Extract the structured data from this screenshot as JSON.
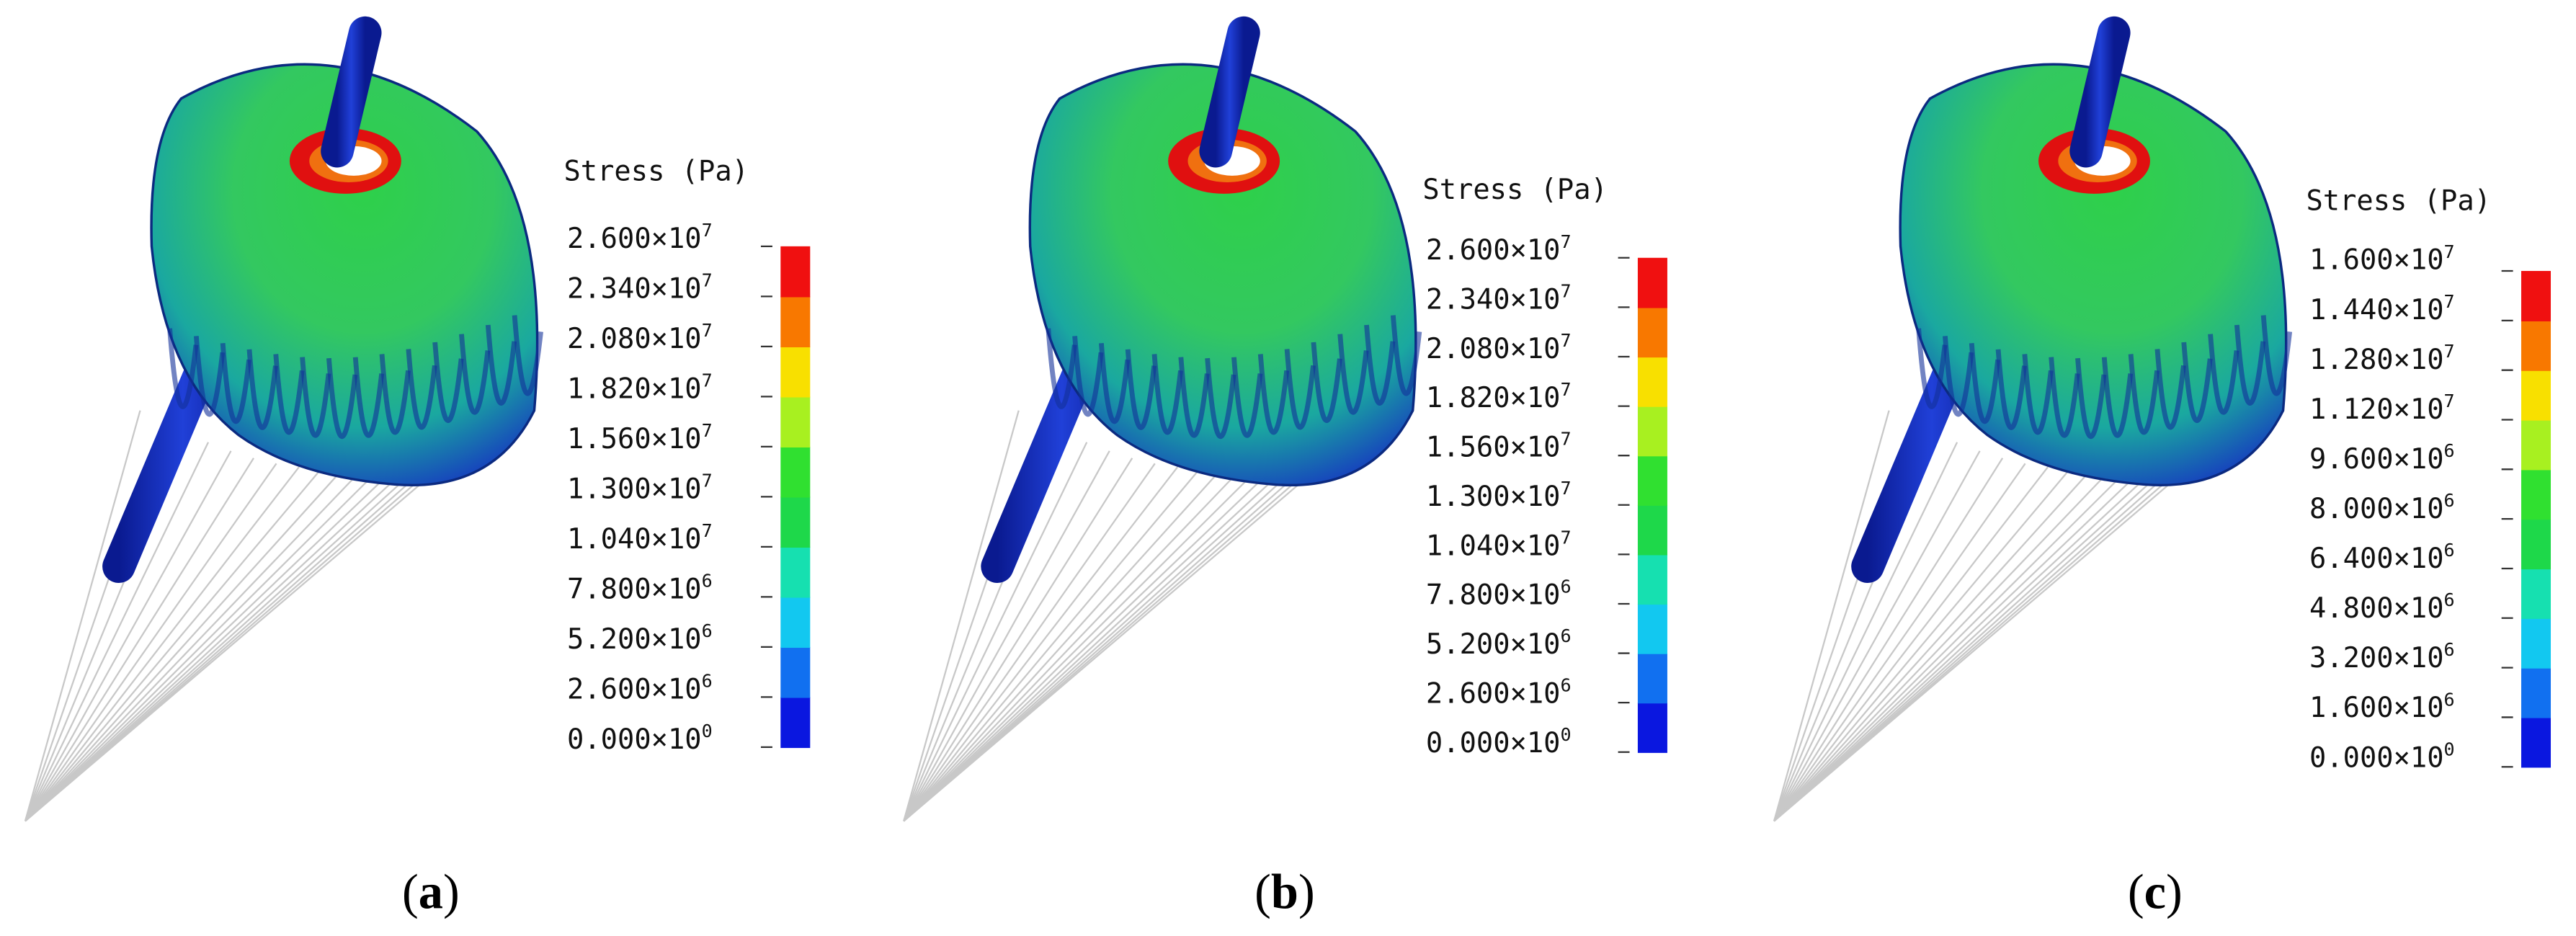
{
  "panels": [
    {
      "caption": [
        "(",
        "a",
        ")"
      ],
      "legend_title": "Stress (Pa)",
      "labels": [
        {
          "base": "2.600×10",
          "exp": "7"
        },
        {
          "base": "2.340×10",
          "exp": "7"
        },
        {
          "base": "2.080×10",
          "exp": "7"
        },
        {
          "base": "1.820×10",
          "exp": "7"
        },
        {
          "base": "1.560×10",
          "exp": "7"
        },
        {
          "base": "1.300×10",
          "exp": "7"
        },
        {
          "base": "1.040×10",
          "exp": "7"
        },
        {
          "base": "7.800×10",
          "exp": "6"
        },
        {
          "base": "5.200×10",
          "exp": "6"
        },
        {
          "base": "2.600×10",
          "exp": "6"
        },
        {
          "base": "0.000×10",
          "exp": "0"
        }
      ]
    },
    {
      "caption": [
        "(",
        "b",
        ")"
      ],
      "legend_title": "Stress (Pa)",
      "labels": [
        {
          "base": "2.600×10",
          "exp": "7"
        },
        {
          "base": "2.340×10",
          "exp": "7"
        },
        {
          "base": "2.080×10",
          "exp": "7"
        },
        {
          "base": "1.820×10",
          "exp": "7"
        },
        {
          "base": "1.560×10",
          "exp": "7"
        },
        {
          "base": "1.300×10",
          "exp": "7"
        },
        {
          "base": "1.040×10",
          "exp": "7"
        },
        {
          "base": "7.800×10",
          "exp": "6"
        },
        {
          "base": "5.200×10",
          "exp": "6"
        },
        {
          "base": "2.600×10",
          "exp": "6"
        },
        {
          "base": "0.000×10",
          "exp": "0"
        }
      ]
    },
    {
      "caption": [
        "(",
        "c",
        ")"
      ],
      "legend_title": "Stress (Pa)",
      "labels": [
        {
          "base": "1.600×10",
          "exp": "7"
        },
        {
          "base": "1.440×10",
          "exp": "7"
        },
        {
          "base": "1.280×10",
          "exp": "7"
        },
        {
          "base": "1.120×10",
          "exp": "7"
        },
        {
          "base": "9.600×10",
          "exp": "6"
        },
        {
          "base": "8.000×10",
          "exp": "6"
        },
        {
          "base": "6.400×10",
          "exp": "6"
        },
        {
          "base": "4.800×10",
          "exp": "6"
        },
        {
          "base": "3.200×10",
          "exp": "6"
        },
        {
          "base": "1.600×10",
          "exp": "6"
        },
        {
          "base": "0.000×10",
          "exp": "0"
        }
      ]
    }
  ],
  "colors": [
    "#0a17e0",
    "#1170f0",
    "#12c8f0",
    "#16e0b0",
    "#1ed84a",
    "#30e030",
    "#a8f020",
    "#f8e000",
    "#f87800",
    "#f01010"
  ]
}
